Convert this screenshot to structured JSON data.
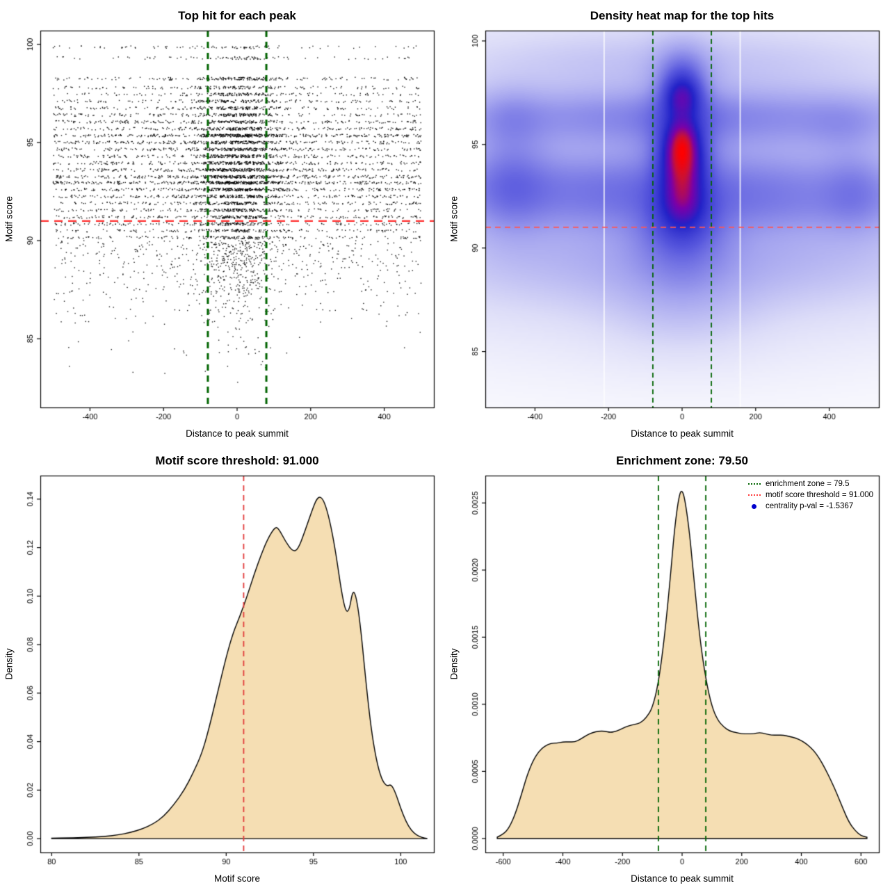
{
  "panels": [
    {
      "title": "Top hit for each peak",
      "xlabel": "Distance to peak summit",
      "ylabel": "Motif score"
    },
    {
      "title": "Density heat map for the top hits",
      "xlabel": "Distance to peak summit",
      "ylabel": "Motif score"
    },
    {
      "title": "Motif score threshold: 91.000",
      "xlabel": "Motif score",
      "ylabel": "Density"
    },
    {
      "title": "Enrichment zone: 79.50",
      "xlabel": "Distance to peak summit",
      "ylabel": "Density",
      "legend": [
        {
          "label": "enrichment zone = 79.5",
          "marker": "green-dotted-line",
          "color": "#006400"
        },
        {
          "label": "motif score threshold = 91.000",
          "marker": "red-dotted-line",
          "color": "#ff3b3b"
        },
        {
          "label": "centrality p-val = -1.5367",
          "marker": "blue-dot",
          "color": "#0000cd"
        }
      ]
    }
  ],
  "chart_data": [
    {
      "type": "scatter",
      "title": "Top hit for each peak",
      "xlabel": "Distance to peak summit",
      "ylabel": "Motif score",
      "xlim": [
        -535,
        535
      ],
      "ylim": [
        81.5,
        100.7
      ],
      "xticks": {
        "values": [
          -400,
          -200,
          0,
          200,
          400
        ],
        "labels": [
          "-400",
          "-200",
          "0",
          "200",
          "400"
        ]
      },
      "yticks": {
        "values": [
          85,
          90,
          95,
          100
        ],
        "labels": [
          "85",
          "90",
          "95",
          "100"
        ]
      },
      "vlines": {
        "x": [
          -79.5,
          79.5
        ],
        "color": "#006400",
        "width": 3,
        "dash": [
          9,
          7
        ]
      },
      "hlines": {
        "y": [
          91
        ],
        "color": "#ff2d2d",
        "width": 2.2,
        "dash": [
          12,
          8
        ]
      },
      "points": {
        "n": 8000,
        "seed": 42,
        "x_range": [
          -500,
          500
        ],
        "x_center_frac": 0.42,
        "x_center_sd": 62,
        "bands": [
          [
            99.85,
            1.0,
            0.07
          ],
          [
            99.3,
            1.2,
            0.07
          ],
          [
            98.25,
            2.2,
            0.07
          ],
          [
            97.8,
            2.0,
            0.07
          ],
          [
            97.45,
            2.2,
            0.07
          ],
          [
            97.1,
            2.4,
            0.07
          ],
          [
            96.75,
            2.6,
            0.07
          ],
          [
            96.4,
            2.8,
            0.07
          ],
          [
            96.05,
            3.0,
            0.07
          ],
          [
            95.7,
            3.4,
            0.07
          ],
          [
            95.35,
            5.5,
            0.07
          ],
          [
            95.0,
            4.0,
            0.07
          ],
          [
            94.65,
            3.8,
            0.07
          ],
          [
            94.3,
            3.8,
            0.07
          ],
          [
            93.95,
            4.0,
            0.07
          ],
          [
            93.6,
            4.2,
            0.07
          ],
          [
            93.25,
            4.6,
            0.07
          ],
          [
            92.95,
            5.5,
            0.07
          ],
          [
            92.6,
            4.0,
            0.07
          ],
          [
            92.25,
            3.6,
            0.07
          ],
          [
            91.9,
            3.2,
            0.07
          ],
          [
            91.55,
            3.0,
            0.07
          ],
          [
            91.2,
            3.0,
            0.07
          ],
          [
            90.85,
            2.6,
            0.07
          ],
          [
            90.5,
            2.4,
            0.07
          ],
          [
            90.15,
            2.2,
            0.07
          ]
        ],
        "continuous": [
          [
            88.6,
            90.0,
            5.0
          ],
          [
            87.2,
            88.6,
            3.0
          ],
          [
            85.8,
            87.2,
            1.4
          ],
          [
            84.2,
            85.8,
            0.45
          ],
          [
            82.6,
            84.2,
            0.12
          ]
        ]
      }
    },
    {
      "type": "heatmap",
      "title": "Density heat map for the top hits",
      "xlabel": "Distance to peak summit",
      "ylabel": "Motif score",
      "xlim": [
        -535,
        535
      ],
      "ylim": [
        82.3,
        100.5
      ],
      "xticks": {
        "values": [
          -400,
          -200,
          0,
          200,
          400
        ],
        "labels": [
          "-400",
          "-200",
          "0",
          "200",
          "400"
        ]
      },
      "yticks": {
        "values": [
          85,
          90,
          95,
          100
        ],
        "labels": [
          "85",
          "90",
          "95",
          "100"
        ]
      },
      "vlines": {
        "x": [
          -79.5,
          79.5
        ],
        "color": "#006400",
        "width": 1.8,
        "dash": [
          7,
          5
        ]
      },
      "hlines": {
        "y": [
          91
        ],
        "color": "#ff5555",
        "width": 1.6,
        "dash": [
          8,
          6
        ]
      },
      "gamma": 0.5,
      "white_gaps": [
        -212,
        158
      ],
      "colormap": [
        [
          0,
          "#ffffff"
        ],
        [
          0.15,
          "#ddddf8"
        ],
        [
          0.33,
          "#a4a4ef"
        ],
        [
          0.52,
          "#5858de"
        ],
        [
          0.7,
          "#2222c8"
        ],
        [
          0.84,
          "#7a00aa"
        ],
        [
          0.93,
          "#cc1133"
        ],
        [
          1,
          "#ff0000"
        ]
      ],
      "kernels": [
        [
          0,
          95.2,
          30,
          0.75,
          1.0
        ],
        [
          0,
          97.35,
          33,
          0.7,
          0.95
        ],
        [
          0,
          93.3,
          36,
          1.15,
          0.85
        ],
        [
          0,
          94.3,
          38,
          0.8,
          0.7
        ],
        [
          2,
          92.1,
          45,
          0.8,
          0.5
        ],
        [
          0,
          95.3,
          60,
          2.3,
          0.45
        ],
        [
          0,
          91.0,
          70,
          0.9,
          0.3
        ],
        [
          0,
          89.8,
          85,
          1.3,
          0.18
        ],
        [
          0,
          87.6,
          130,
          1.6,
          0.1
        ],
        [
          0,
          98.6,
          45,
          0.8,
          0.22
        ],
        [
          0,
          96.6,
          480,
          0.8,
          0.2
        ],
        [
          -80,
          93.1,
          480,
          0.95,
          0.26
        ],
        [
          60,
          91.9,
          480,
          0.85,
          0.16
        ],
        [
          0,
          89.4,
          430,
          1.4,
          0.1
        ],
        [
          -40,
          99.0,
          380,
          0.9,
          0.07
        ],
        [
          0,
          95.8,
          480,
          0.8,
          0.12
        ],
        [
          -465,
          93.2,
          70,
          1.7,
          0.26
        ],
        [
          -465,
          96.3,
          60,
          1.0,
          0.12
        ],
        [
          470,
          92.7,
          60,
          1.3,
          0.18
        ],
        [
          440,
          95.9,
          70,
          0.9,
          0.1
        ],
        [
          0,
          93.8,
          520,
          4.2,
          0.16
        ],
        [
          0,
          91.5,
          520,
          3.0,
          0.08
        ]
      ]
    },
    {
      "type": "area",
      "title": "Motif score threshold: 91.000",
      "xlabel": "Motif score",
      "ylabel": "Density",
      "xlim": [
        79.35,
        101.9
      ],
      "ylim": [
        -0.0057,
        0.1497
      ],
      "xticks": {
        "values": [
          80,
          85,
          90,
          95,
          100
        ],
        "labels": [
          "80",
          "85",
          "90",
          "95",
          "100"
        ]
      },
      "yticks": {
        "values": [
          0,
          0.02,
          0.04,
          0.06,
          0.08,
          0.1,
          0.12,
          0.14
        ],
        "labels": [
          "0.00",
          "0.02",
          "0.04",
          "0.06",
          "0.08",
          "0.10",
          "0.12",
          "0.14"
        ]
      },
      "vlines": {
        "x": [
          91
        ],
        "color": "#e23b3b",
        "width": 1.8,
        "dash": [
          8,
          6
        ]
      },
      "fill": "#f5deb3",
      "stroke": "#000000",
      "curve": [
        [
          80,
          0.0002
        ],
        [
          81,
          0.0003
        ],
        [
          82,
          0.0005
        ],
        [
          83,
          0.0009
        ],
        [
          83.8,
          0.0015
        ],
        [
          84.5,
          0.0025
        ],
        [
          85.2,
          0.004
        ],
        [
          85.8,
          0.006
        ],
        [
          86.4,
          0.009
        ],
        [
          87,
          0.014
        ],
        [
          87.6,
          0.02
        ],
        [
          88.1,
          0.027
        ],
        [
          88.6,
          0.035
        ],
        [
          89,
          0.045
        ],
        [
          89.5,
          0.06
        ],
        [
          90,
          0.075
        ],
        [
          90.4,
          0.085
        ],
        [
          90.8,
          0.092
        ],
        [
          91.2,
          0.1
        ],
        [
          91.6,
          0.109
        ],
        [
          92,
          0.117
        ],
        [
          92.4,
          0.124
        ],
        [
          92.8,
          0.1285
        ],
        [
          93,
          0.128
        ],
        [
          93.4,
          0.1225
        ],
        [
          93.8,
          0.1185
        ],
        [
          94.1,
          0.119
        ],
        [
          94.5,
          0.1265
        ],
        [
          94.9,
          0.135
        ],
        [
          95.2,
          0.1405
        ],
        [
          95.45,
          0.141
        ],
        [
          95.7,
          0.1375
        ],
        [
          96,
          0.129
        ],
        [
          96.3,
          0.117
        ],
        [
          96.6,
          0.102
        ],
        [
          96.85,
          0.0935
        ],
        [
          97.05,
          0.094
        ],
        [
          97.25,
          0.1025
        ],
        [
          97.45,
          0.1
        ],
        [
          97.7,
          0.0875
        ],
        [
          98,
          0.065
        ],
        [
          98.3,
          0.0455
        ],
        [
          98.6,
          0.0325
        ],
        [
          98.9,
          0.0245
        ],
        [
          99.2,
          0.0215
        ],
        [
          99.45,
          0.0225
        ],
        [
          99.7,
          0.019
        ],
        [
          100,
          0.0125
        ],
        [
          100.3,
          0.007
        ],
        [
          100.6,
          0.0035
        ],
        [
          100.9,
          0.0015
        ],
        [
          101.2,
          0.0005
        ],
        [
          101.5,
          0.0001
        ]
      ]
    },
    {
      "type": "area",
      "title": "Enrichment zone: 79.50",
      "xlabel": "Distance to peak summit",
      "ylabel": "Density",
      "xlim": [
        -660,
        660
      ],
      "ylim": [
        -0.000104,
        0.002704
      ],
      "xticks": {
        "values": [
          -600,
          -400,
          -200,
          0,
          200,
          400,
          600
        ],
        "labels": [
          "-600",
          "-400",
          "-200",
          "0",
          "200",
          "400",
          "600"
        ]
      },
      "yticks": {
        "values": [
          0,
          0.0005,
          0.001,
          0.0015,
          0.002,
          0.0025
        ],
        "labels": [
          "0.0000",
          "0.0005",
          "0.0010",
          "0.0015",
          "0.0020",
          "0.0025"
        ]
      },
      "vlines": {
        "x": [
          -79.5,
          79.5
        ],
        "color": "#006400",
        "width": 1.8,
        "dash": [
          8,
          6
        ]
      },
      "fill": "#f5deb3",
      "stroke": "#000000",
      "legend_values": {
        "enrichment_zone": "79.5",
        "motif_score_threshold": "91.000",
        "centrality_pval": "-1.5367"
      },
      "curve": [
        [
          -620,
          1e-05
        ],
        [
          -600,
          3e-05
        ],
        [
          -580,
          8e-05
        ],
        [
          -560,
          0.00018
        ],
        [
          -540,
          0.00032
        ],
        [
          -520,
          0.00047
        ],
        [
          -500,
          0.00058
        ],
        [
          -480,
          0.00065
        ],
        [
          -460,
          0.00069
        ],
        [
          -440,
          0.00071
        ],
        [
          -420,
          0.00071
        ],
        [
          -400,
          0.00072
        ],
        [
          -380,
          0.00072
        ],
        [
          -360,
          0.00072
        ],
        [
          -340,
          0.00074
        ],
        [
          -320,
          0.00077
        ],
        [
          -300,
          0.00079
        ],
        [
          -280,
          0.0008
        ],
        [
          -260,
          0.0008
        ],
        [
          -240,
          0.00079
        ],
        [
          -220,
          0.0008
        ],
        [
          -200,
          0.00082
        ],
        [
          -180,
          0.00084
        ],
        [
          -160,
          0.00085
        ],
        [
          -140,
          0.00086
        ],
        [
          -120,
          0.0009
        ],
        [
          -100,
          0.00097
        ],
        [
          -80,
          0.00115
        ],
        [
          -60,
          0.00148
        ],
        [
          -40,
          0.00193
        ],
        [
          -25,
          0.00232
        ],
        [
          -10,
          0.00256
        ],
        [
          0,
          0.0026
        ],
        [
          10,
          0.00252
        ],
        [
          25,
          0.00228
        ],
        [
          40,
          0.00192
        ],
        [
          60,
          0.00148
        ],
        [
          80,
          0.00118
        ],
        [
          100,
          0.00098
        ],
        [
          120,
          0.00088
        ],
        [
          140,
          0.00083
        ],
        [
          160,
          0.0008
        ],
        [
          180,
          0.00079
        ],
        [
          200,
          0.00078
        ],
        [
          220,
          0.00078
        ],
        [
          240,
          0.00078
        ],
        [
          260,
          0.00079
        ],
        [
          280,
          0.00078
        ],
        [
          300,
          0.00077
        ],
        [
          320,
          0.00077
        ],
        [
          340,
          0.00077
        ],
        [
          360,
          0.00076
        ],
        [
          380,
          0.00075
        ],
        [
          400,
          0.00073
        ],
        [
          420,
          0.0007
        ],
        [
          440,
          0.00066
        ],
        [
          460,
          0.0006
        ],
        [
          480,
          0.00052
        ],
        [
          500,
          0.00043
        ],
        [
          520,
          0.00033
        ],
        [
          540,
          0.00022
        ],
        [
          560,
          0.00012
        ],
        [
          580,
          6e-05
        ],
        [
          600,
          2e-05
        ],
        [
          620,
          1e-05
        ]
      ]
    }
  ]
}
